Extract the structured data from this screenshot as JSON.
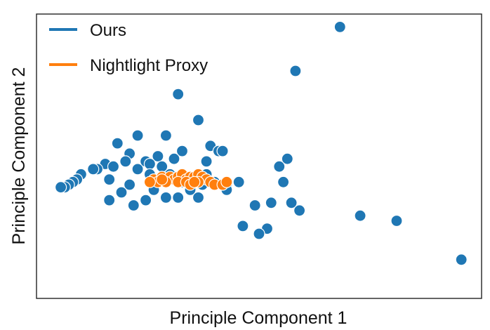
{
  "chart_data": {
    "type": "scatter",
    "title": "",
    "xlabel": "Principle Component 1",
    "ylabel": "Principle Component 2",
    "xlim": [
      -0.5,
      10.5
    ],
    "ylim": [
      -0.5,
      10.5
    ],
    "grid": false,
    "legend_position": "top-left",
    "series": [
      {
        "name": "Ours",
        "color": "#1f77b4",
        "points": [
          [
            7.0,
            10.0
          ],
          [
            5.9,
            8.3
          ],
          [
            3.0,
            7.4
          ],
          [
            3.5,
            6.4
          ],
          [
            2.0,
            5.8
          ],
          [
            2.7,
            5.8
          ],
          [
            1.5,
            5.5
          ],
          [
            3.8,
            5.4
          ],
          [
            3.1,
            5.2
          ],
          [
            4.0,
            5.2
          ],
          [
            4.1,
            5.2
          ],
          [
            1.8,
            5.1
          ],
          [
            2.5,
            5.0
          ],
          [
            2.9,
            4.9
          ],
          [
            5.7,
            4.9
          ],
          [
            2.2,
            4.8
          ],
          [
            3.7,
            4.8
          ],
          [
            1.7,
            4.8
          ],
          [
            2.3,
            4.7
          ],
          [
            1.2,
            4.7
          ],
          [
            1.4,
            4.6
          ],
          [
            2.6,
            4.6
          ],
          [
            5.5,
            4.6
          ],
          [
            1.0,
            4.5
          ],
          [
            0.9,
            4.5
          ],
          [
            2.0,
            4.5
          ],
          [
            2.3,
            4.3
          ],
          [
            3.7,
            4.3
          ],
          [
            0.6,
            4.3
          ],
          [
            2.8,
            4.3
          ],
          [
            3.2,
            4.1
          ],
          [
            0.5,
            4.1
          ],
          [
            1.3,
            4.1
          ],
          [
            0.4,
            4.0
          ],
          [
            3.9,
            4.0
          ],
          [
            3.1,
            4.0
          ],
          [
            2.3,
            4.0
          ],
          [
            4.5,
            4.0
          ],
          [
            5.6,
            4.0
          ],
          [
            1.8,
            3.9
          ],
          [
            3.6,
            3.9
          ],
          [
            0.3,
            3.9
          ],
          [
            4.2,
            3.9
          ],
          [
            3.3,
            3.9
          ],
          [
            0.2,
            3.8
          ],
          [
            0.1,
            3.8
          ],
          [
            2.4,
            3.7
          ],
          [
            3.3,
            3.7
          ],
          [
            4.2,
            3.7
          ],
          [
            1.6,
            3.6
          ],
          [
            3.0,
            3.4
          ],
          [
            2.7,
            3.4
          ],
          [
            3.5,
            3.4
          ],
          [
            1.3,
            3.3
          ],
          [
            2.2,
            3.3
          ],
          [
            5.3,
            3.2
          ],
          [
            4.9,
            3.1
          ],
          [
            5.8,
            3.2
          ],
          [
            1.9,
            3.1
          ],
          [
            6.0,
            2.9
          ],
          [
            7.5,
            2.7
          ],
          [
            8.4,
            2.5
          ],
          [
            4.6,
            2.3
          ],
          [
            5.2,
            2.2
          ],
          [
            5.0,
            2.0
          ],
          [
            10.0,
            1.0
          ]
        ]
      },
      {
        "name": "Nightlight Proxy",
        "color": "#ff7f0e",
        "points": [
          [
            2.4,
            4.1
          ],
          [
            2.6,
            4.2
          ],
          [
            2.8,
            4.2
          ],
          [
            2.9,
            4.1
          ],
          [
            3.0,
            4.2
          ],
          [
            3.1,
            4.3
          ],
          [
            3.2,
            4.1
          ],
          [
            3.3,
            4.2
          ],
          [
            3.4,
            4.2
          ],
          [
            3.5,
            4.3
          ],
          [
            3.6,
            4.2
          ],
          [
            3.7,
            4.1
          ],
          [
            2.5,
            4.0
          ],
          [
            2.7,
            4.0
          ],
          [
            3.0,
            4.0
          ],
          [
            3.2,
            4.0
          ],
          [
            3.3,
            3.9
          ],
          [
            3.5,
            4.0
          ],
          [
            3.8,
            4.0
          ],
          [
            3.9,
            3.9
          ],
          [
            4.1,
            3.9
          ],
          [
            4.2,
            4.0
          ],
          [
            2.3,
            4.0
          ],
          [
            2.6,
            4.1
          ],
          [
            3.4,
            4.0
          ]
        ]
      }
    ]
  }
}
